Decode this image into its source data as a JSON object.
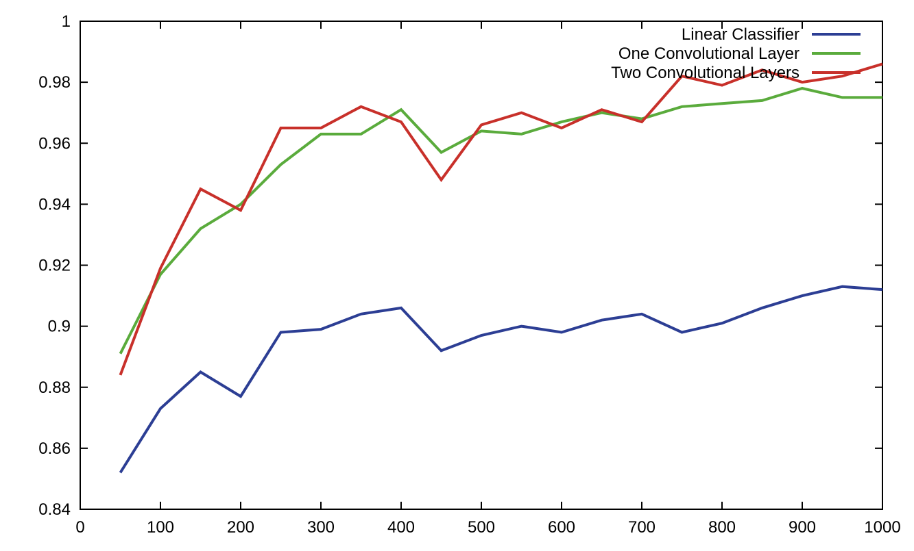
{
  "chart_data": {
    "type": "line",
    "title": "",
    "xlabel": "",
    "ylabel": "",
    "xlim": [
      0,
      1000
    ],
    "ylim": [
      0.84,
      1.0
    ],
    "xticks": [
      0,
      100,
      200,
      300,
      400,
      500,
      600,
      700,
      800,
      900,
      1000
    ],
    "yticks": [
      0.84,
      0.86,
      0.88,
      0.9,
      0.92,
      0.94,
      0.96,
      0.98,
      1
    ],
    "xtick_labels": [
      "0",
      "100",
      "200",
      "300",
      "400",
      "500",
      "600",
      "700",
      "800",
      "900",
      "1000"
    ],
    "ytick_labels": [
      "0.84",
      "0.86",
      "0.88",
      "0.9",
      "0.92",
      "0.94",
      "0.96",
      "0.98",
      "1"
    ],
    "grid": false,
    "legend_position": "top-right",
    "x": [
      50,
      100,
      150,
      200,
      250,
      300,
      350,
      400,
      450,
      500,
      550,
      600,
      650,
      700,
      750,
      800,
      850,
      900,
      950,
      1000
    ],
    "series": [
      {
        "name": "Linear Classifier",
        "color": "#2c3e94",
        "values": [
          0.852,
          0.873,
          0.885,
          0.877,
          0.898,
          0.899,
          0.904,
          0.906,
          0.892,
          0.897,
          0.9,
          0.898,
          0.902,
          0.904,
          0.898,
          0.901,
          0.906,
          0.91,
          0.913,
          0.912
        ]
      },
      {
        "name": "One Convolutional Layer",
        "color": "#5aab3c",
        "values": [
          0.891,
          0.917,
          0.932,
          0.94,
          0.953,
          0.963,
          0.963,
          0.971,
          0.957,
          0.964,
          0.963,
          0.967,
          0.97,
          0.968,
          0.972,
          0.973,
          0.974,
          0.978,
          0.975,
          0.975
        ]
      },
      {
        "name": "Two Convolutional Layers",
        "color": "#c8302a",
        "values": [
          0.884,
          0.919,
          0.945,
          0.938,
          0.965,
          0.965,
          0.972,
          0.967,
          0.948,
          0.966,
          0.97,
          0.965,
          0.971,
          0.967,
          0.982,
          0.979,
          0.984,
          0.98,
          0.982,
          0.986
        ]
      }
    ]
  }
}
